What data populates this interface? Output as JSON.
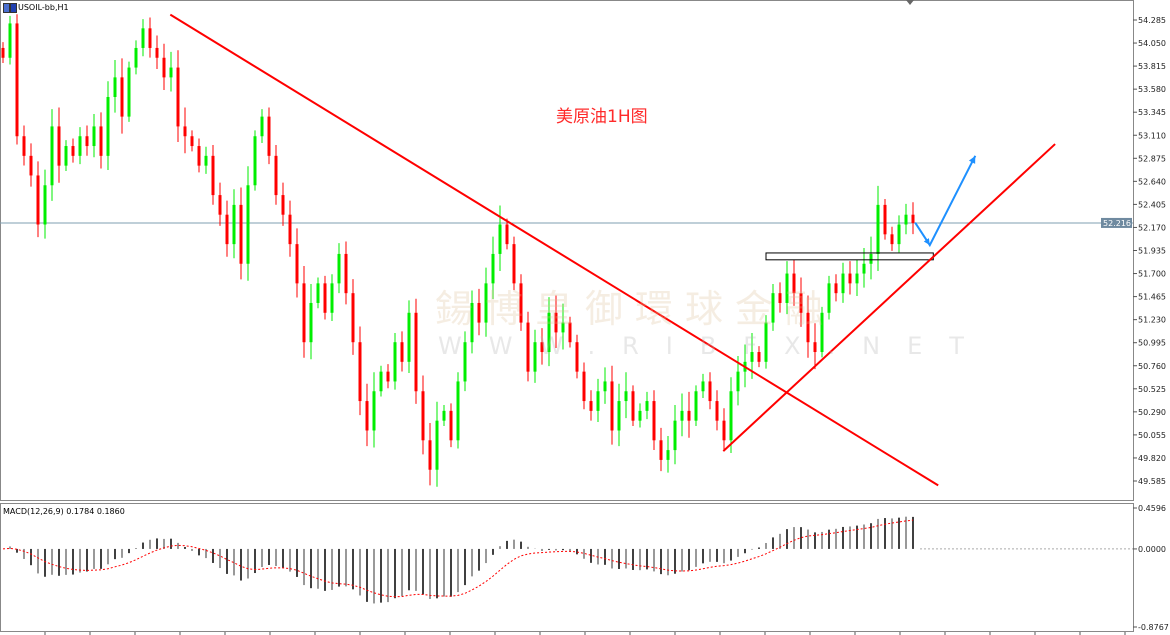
{
  "header": {
    "symbol_title": "USOIL-bb,H1"
  },
  "annotation": "美原油1H图",
  "watermark": {
    "cn": "鍚博皇御環球金融",
    "en": "WWW.RIBFX.NET"
  },
  "colors": {
    "up": "#00ee00",
    "down": "#ff0000",
    "trendline": "#ff0000",
    "arrow": "#1e90ff",
    "price_line": "#7f9fb0",
    "signal": "#ff0000",
    "histogram": "#000000"
  },
  "chart_data": {
    "type": "candlestick",
    "timeframe": "H1",
    "y_ticks": [
      "54.285",
      "54.050",
      "53.815",
      "53.580",
      "53.345",
      "53.110",
      "52.875",
      "52.640",
      "52.405",
      "52.170",
      "51.935",
      "51.700",
      "51.465",
      "51.230",
      "50.995",
      "50.760",
      "50.525",
      "50.290",
      "50.055",
      "49.820",
      "49.585"
    ],
    "ylim": [
      49.585,
      54.285
    ],
    "current_price": "52.216",
    "closes": [
      53.9,
      54.25,
      53.1,
      52.9,
      52.7,
      52.2,
      52.6,
      53.2,
      52.8,
      53.0,
      52.9,
      53.1,
      53.0,
      53.2,
      52.9,
      53.5,
      53.7,
      53.3,
      53.8,
      54.0,
      54.2,
      54.0,
      53.9,
      53.7,
      53.8,
      53.2,
      53.1,
      53.0,
      52.8,
      52.9,
      52.5,
      52.3,
      52.0,
      52.4,
      51.8,
      52.6,
      53.1,
      53.3,
      52.9,
      52.5,
      52.3,
      52.0,
      51.6,
      51.0,
      51.4,
      51.6,
      51.3,
      51.6,
      51.9,
      51.5,
      51.0,
      50.4,
      50.1,
      50.5,
      50.7,
      50.6,
      51.0,
      50.8,
      51.3,
      50.5,
      50.0,
      49.7,
      50.2,
      50.3,
      50.0,
      50.6,
      51.0,
      51.4,
      51.2,
      51.6,
      51.9,
      52.2,
      52.0,
      51.6,
      51.2,
      50.7,
      51.0,
      50.9,
      51.3,
      51.1,
      51.2,
      51.0,
      50.7,
      50.4,
      50.3,
      50.5,
      50.6,
      50.1,
      50.4,
      50.5,
      50.2,
      50.3,
      50.4,
      50.0,
      49.8,
      49.9,
      50.2,
      50.3,
      50.2,
      50.5,
      50.6,
      50.4,
      50.2,
      50.0,
      50.5,
      50.7,
      50.8,
      50.9,
      50.8,
      51.2,
      51.5,
      51.4,
      51.7,
      51.5,
      51.3,
      51.0,
      50.9,
      51.3,
      51.6,
      51.5,
      51.7,
      51.6,
      51.7,
      51.8,
      51.9,
      52.4,
      52.1,
      52.0,
      52.2,
      52.3,
      52.216
    ],
    "trendlines": [
      {
        "from": {
          "bar": 23.9,
          "price": 54.34
        },
        "to": {
          "bar": 133.6,
          "price": 49.54
        }
      },
      {
        "from": {
          "bar": 102.9,
          "price": 49.89
        },
        "to": {
          "bar": 150.3,
          "price": 53.02
        }
      }
    ],
    "arrow": [
      {
        "bar": 130.3,
        "price": 52.22
      },
      {
        "bar": 132.4,
        "price": 51.99
      },
      {
        "bar": 138.9,
        "price": 52.9
      }
    ],
    "rectangle": {
      "bar_from": 109,
      "bar_to": 132.9,
      "price_top": 51.91,
      "price_bottom": 51.84
    },
    "macd": {
      "label": "MACD(12,26,9) 0.1784 0.1860",
      "y_ticks": [
        "0.4596",
        "0.0000",
        "-0.8767"
      ],
      "ylim": [
        -0.8767,
        0.4596
      ]
    }
  }
}
